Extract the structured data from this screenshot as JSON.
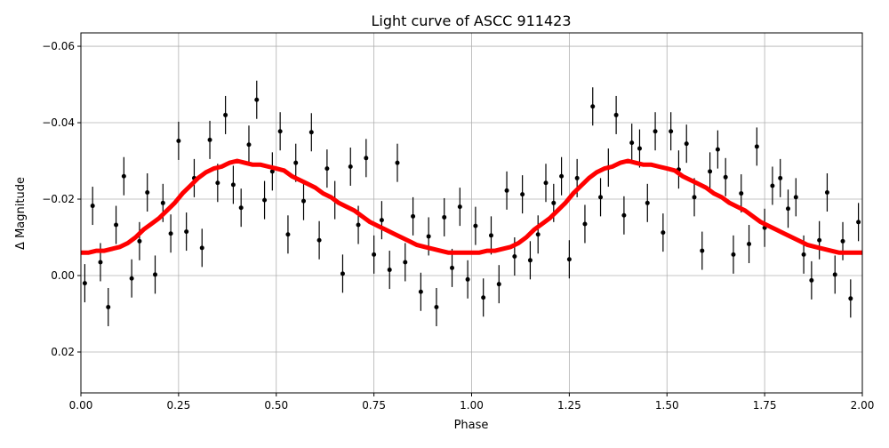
{
  "chart_data": {
    "type": "scatter",
    "title": "Light curve of ASCC 911423",
    "xlabel": "Phase",
    "ylabel": "Δ Magnitude",
    "xlim": [
      0.0,
      2.0
    ],
    "ylim": [
      -0.0635,
      0.0307
    ],
    "y_inverted": true,
    "grid": true,
    "xticks": [
      "0.00",
      "0.25",
      "0.50",
      "0.75",
      "1.00",
      "1.25",
      "1.50",
      "1.75",
      "2.00"
    ],
    "xtick_values": [
      0,
      0.25,
      0.5,
      0.75,
      1.0,
      1.25,
      1.5,
      1.75,
      2.0
    ],
    "yticks": [
      "−0.06",
      "−0.04",
      "−0.02",
      "0.00",
      "0.02"
    ],
    "ytick_values": [
      -0.06,
      -0.04,
      -0.02,
      0.0,
      0.02
    ],
    "colors": {
      "points": "#000000",
      "binned_curve": "#ff0000"
    },
    "series": [
      {
        "type": "scatter-errorbar",
        "color": "#000000",
        "yerr": 0.005,
        "x": [
          0.01,
          0.03,
          0.05,
          0.07,
          0.09,
          0.11,
          0.13,
          0.15,
          0.17,
          0.19,
          0.21,
          0.23,
          0.25,
          0.27,
          0.29,
          0.31,
          0.33,
          0.35,
          0.37,
          0.39,
          0.41,
          0.43,
          0.45,
          0.47,
          0.49,
          0.51,
          0.53,
          0.55,
          0.57,
          0.59,
          0.61,
          0.63,
          0.65,
          0.67,
          0.69,
          0.71,
          0.73,
          0.75,
          0.77,
          0.79,
          0.81,
          0.83,
          0.85,
          0.87,
          0.89,
          0.91,
          0.93,
          0.95,
          0.97,
          0.99,
          1.01,
          1.03,
          1.05,
          1.07,
          1.09,
          1.11,
          1.13,
          1.15,
          1.17,
          1.19,
          1.21,
          1.23,
          1.25,
          1.27,
          1.29,
          1.31,
          1.33,
          1.35,
          1.37,
          1.39,
          1.41,
          1.43,
          1.45,
          1.47,
          1.49,
          1.51,
          1.53,
          1.55,
          1.57,
          1.59,
          1.61,
          1.63,
          1.65,
          1.67,
          1.69,
          1.71,
          1.73,
          1.75,
          1.77,
          1.79,
          1.81,
          1.83,
          1.85,
          1.87,
          1.89,
          1.91,
          1.93,
          1.95,
          1.97,
          1.99
        ],
        "y": [
          0.002,
          -0.01825,
          -0.0035,
          0.00825,
          -0.01325,
          -0.026,
          0.00075,
          -0.009,
          -0.02175,
          -0.00025,
          -0.019,
          -0.011,
          -0.03525,
          -0.0115,
          -0.0255,
          -0.00725,
          -0.0355,
          -0.02425,
          -0.042,
          -0.02375,
          -0.01775,
          -0.03425,
          -0.046,
          -0.01975,
          -0.02725,
          -0.03775,
          -0.01075,
          -0.0295,
          -0.0195,
          -0.0375,
          -0.00925,
          -0.028,
          -0.01975,
          -0.0005,
          -0.0285,
          -0.01325,
          -0.03075,
          -0.0055,
          -0.0145,
          -0.0015,
          -0.0295,
          -0.0035,
          -0.0155,
          0.00425,
          -0.01025,
          0.00825,
          -0.01525,
          -0.002,
          -0.018,
          0.001,
          -0.013,
          0.00575,
          -0.0105,
          0.00225,
          -0.02225,
          -0.005,
          -0.02125,
          -0.004,
          -0.01075,
          -0.02425,
          -0.019,
          -0.026,
          -0.00425,
          -0.0255,
          -0.0135,
          -0.04425,
          -0.0205,
          -0.02825,
          -0.042,
          -0.01575,
          -0.03475,
          -0.03325,
          -0.019,
          -0.03775,
          -0.01125,
          -0.03775,
          -0.02775,
          -0.0345,
          -0.0205,
          -0.0065,
          -0.02725,
          -0.033,
          -0.02575,
          -0.0055,
          -0.0215,
          -0.00825,
          -0.03375,
          -0.0125,
          -0.0235,
          -0.0255,
          -0.0175,
          -0.0205,
          -0.0055,
          0.00125,
          -0.00925,
          -0.02175,
          -0.00025,
          -0.009,
          0.006,
          -0.014
        ]
      },
      {
        "type": "line",
        "color": "#ff0000",
        "x": [
          0,
          0.02,
          0.04,
          0.06,
          0.08,
          0.1,
          0.12,
          0.14,
          0.16,
          0.18,
          0.2,
          0.22,
          0.24,
          0.26,
          0.28,
          0.3,
          0.32,
          0.34,
          0.36,
          0.38,
          0.4,
          0.42,
          0.44,
          0.46,
          0.48,
          0.5,
          0.52,
          0.54,
          0.56,
          0.58,
          0.6,
          0.62,
          0.64,
          0.66,
          0.68,
          0.7,
          0.72,
          0.74,
          0.76,
          0.78,
          0.8,
          0.82,
          0.84,
          0.86,
          0.88,
          0.9,
          0.92,
          0.94,
          0.96,
          0.98,
          1.0,
          1.02,
          1.04,
          1.06,
          1.08,
          1.1,
          1.12,
          1.14,
          1.16,
          1.18,
          1.2,
          1.22,
          1.24,
          1.26,
          1.28,
          1.3,
          1.32,
          1.34,
          1.36,
          1.38,
          1.4,
          1.42,
          1.44,
          1.46,
          1.48,
          1.5,
          1.52,
          1.54,
          1.56,
          1.58,
          1.6,
          1.62,
          1.64,
          1.66,
          1.68,
          1.7,
          1.72,
          1.74,
          1.76,
          1.78,
          1.8,
          1.82,
          1.84,
          1.86,
          1.88,
          1.9,
          1.92,
          1.94,
          1.96,
          1.98,
          2.0
        ],
        "y": [
          -0.006,
          -0.006,
          -0.0065,
          -0.0065,
          -0.007,
          -0.0075,
          -0.0085,
          -0.01,
          -0.012,
          -0.0135,
          -0.015,
          -0.017,
          -0.019,
          -0.0215,
          -0.0235,
          -0.0255,
          -0.027,
          -0.028,
          -0.0285,
          -0.0295,
          -0.03,
          -0.0295,
          -0.029,
          -0.029,
          -0.0285,
          -0.028,
          -0.0275,
          -0.026,
          -0.025,
          -0.024,
          -0.023,
          -0.0215,
          -0.0205,
          -0.019,
          -0.018,
          -0.017,
          -0.0155,
          -0.014,
          -0.013,
          -0.012,
          -0.011,
          -0.01,
          -0.009,
          -0.008,
          -0.0075,
          -0.007,
          -0.0065,
          -0.006,
          -0.006,
          -0.006,
          -0.006,
          -0.006,
          -0.0065,
          -0.0065,
          -0.007,
          -0.0075,
          -0.0085,
          -0.01,
          -0.012,
          -0.0135,
          -0.015,
          -0.017,
          -0.019,
          -0.0215,
          -0.0235,
          -0.0255,
          -0.027,
          -0.028,
          -0.0285,
          -0.0295,
          -0.03,
          -0.0295,
          -0.029,
          -0.029,
          -0.0285,
          -0.028,
          -0.0275,
          -0.026,
          -0.025,
          -0.024,
          -0.023,
          -0.0215,
          -0.0205,
          -0.019,
          -0.018,
          -0.017,
          -0.0155,
          -0.014,
          -0.013,
          -0.012,
          -0.011,
          -0.01,
          -0.009,
          -0.008,
          -0.0075,
          -0.007,
          -0.0065,
          -0.006,
          -0.006,
          -0.006,
          -0.006
        ]
      }
    ]
  }
}
